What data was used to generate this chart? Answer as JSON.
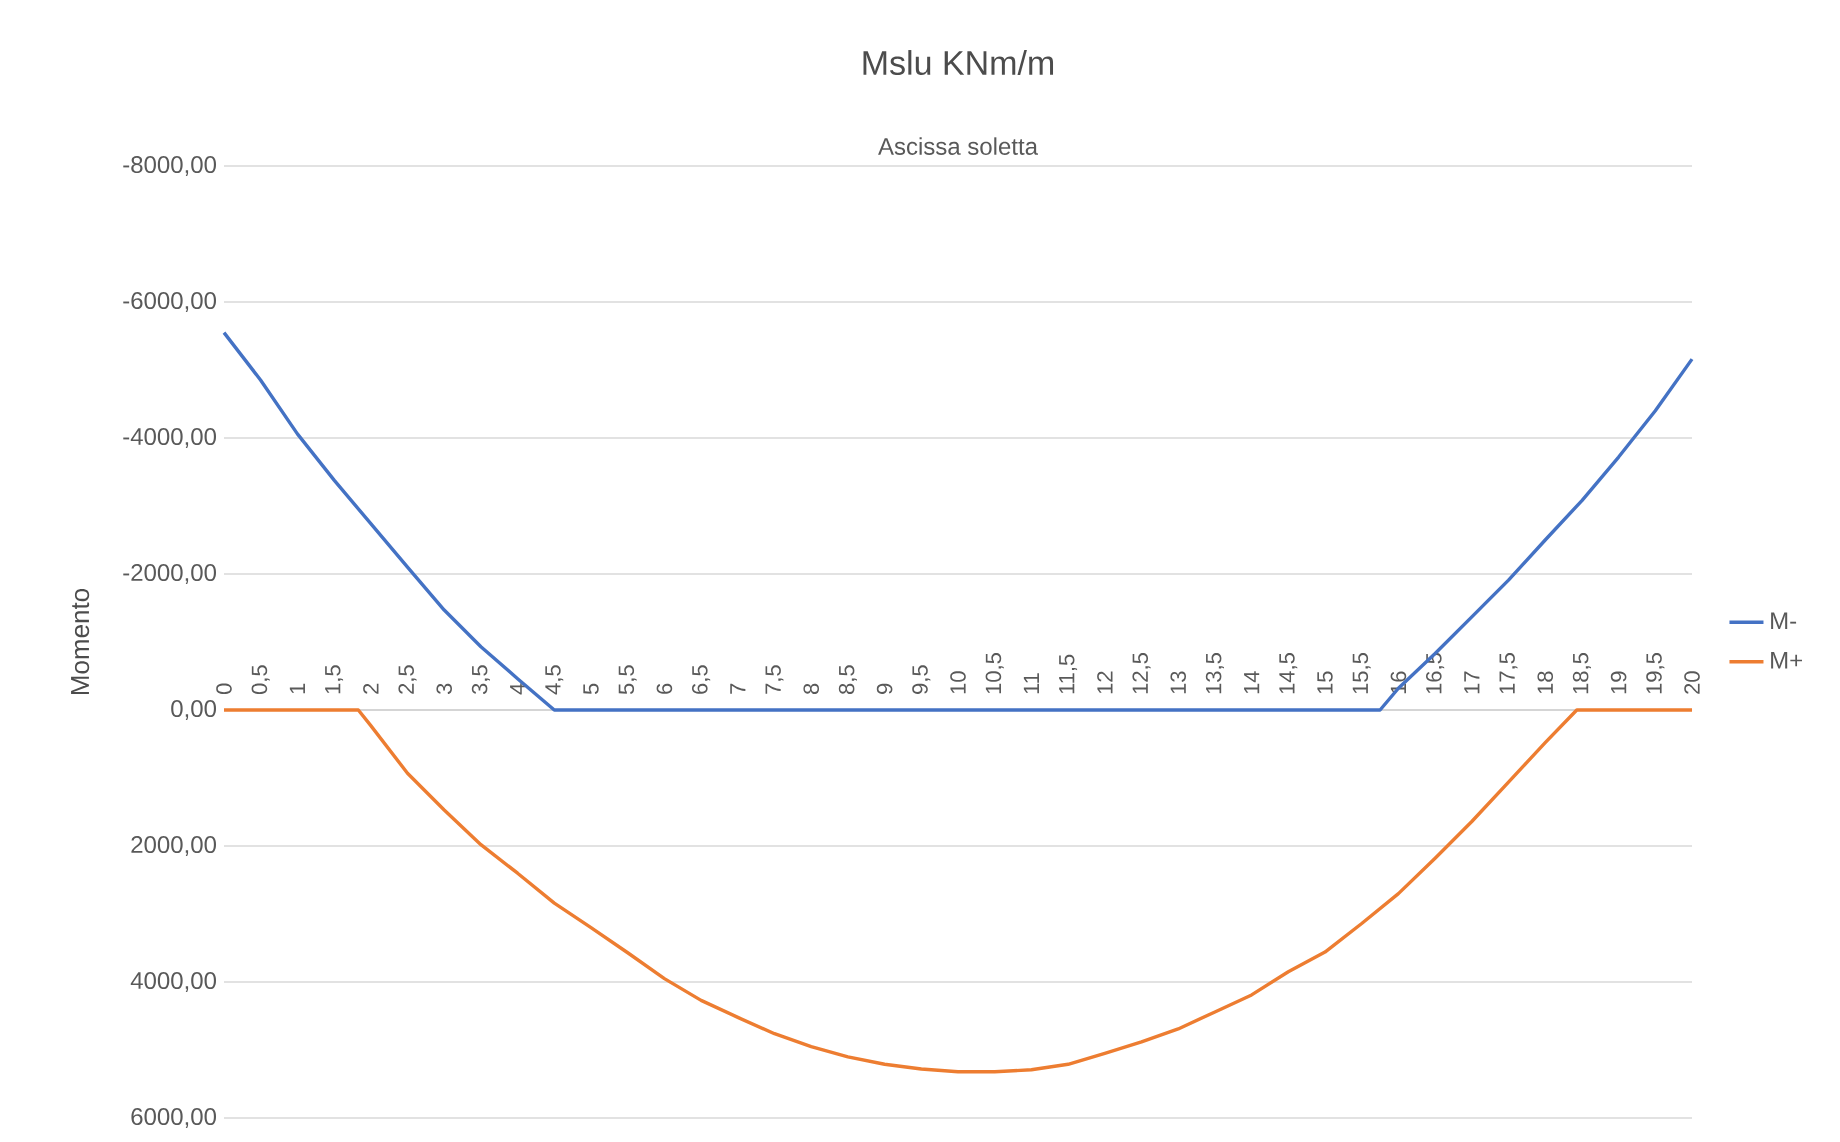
{
  "chart_data": {
    "type": "line",
    "title": "Mslu  KNm/m",
    "xlabel": "Ascissa soletta",
    "ylabel": "Momento",
    "xlim": [
      0,
      20
    ],
    "xticks": [
      0,
      {
        "value": 0.5,
        "label": "0,5"
      },
      1,
      {
        "value": 1.5,
        "label": "1,5"
      },
      2,
      {
        "value": 2.5,
        "label": "2,5"
      },
      3,
      {
        "value": 3.5,
        "label": "3,5"
      },
      4,
      {
        "value": 4.5,
        "label": "4,5"
      },
      5,
      {
        "value": 5.5,
        "label": "5,5"
      },
      6,
      {
        "value": 6.5,
        "label": "6,5"
      },
      7,
      {
        "value": 7.5,
        "label": "7,5"
      },
      8,
      {
        "value": 8.5,
        "label": "8,5"
      },
      9,
      {
        "value": 9.5,
        "label": "9,5"
      },
      10,
      {
        "value": 10.5,
        "label": "10,5"
      },
      11,
      {
        "value": 11.5,
        "label": "11,5"
      },
      12,
      {
        "value": 12.5,
        "label": "12,5"
      },
      13,
      {
        "value": 13.5,
        "label": "13,5"
      },
      14,
      {
        "value": 14.5,
        "label": "14,5"
      },
      15,
      {
        "value": 15.5,
        "label": "15,5"
      },
      16,
      {
        "value": 16.5,
        "label": "16,5"
      },
      17,
      {
        "value": 17.5,
        "label": "17,5"
      },
      18,
      {
        "value": 18.5,
        "label": "18,5"
      },
      19,
      {
        "value": 19.5,
        "label": "19,5"
      },
      20
    ],
    "ylim": [
      6000,
      -8000
    ],
    "yticks": [
      {
        "value": -8000,
        "label": "-8000,00"
      },
      {
        "value": -6000,
        "label": "-6000,00"
      },
      {
        "value": -4000,
        "label": "-4000,00"
      },
      {
        "value": -2000,
        "label": "-2000,00"
      },
      {
        "value": 0,
        "label": "0,00"
      },
      {
        "value": 2000,
        "label": "2000,00"
      },
      {
        "value": 4000,
        "label": "4000,00"
      },
      {
        "value": 6000,
        "label": "6000,00"
      }
    ],
    "grid": "y",
    "legend": "right",
    "marker": "none",
    "series": [
      {
        "name": "M-",
        "color": "#4472c4",
        "x": [
          0,
          0.5,
          1,
          1.5,
          2,
          2.5,
          3,
          3.5,
          4,
          4.5,
          15.75,
          16,
          16.5,
          17,
          17.5,
          18,
          18.5,
          19,
          19.5,
          20
        ],
        "values": [
          -5550,
          -4850,
          -4060,
          -3380,
          -2740,
          -2100,
          -1470,
          -930,
          -460,
          0,
          0,
          -320,
          -830,
          -1370,
          -1910,
          -2500,
          -3080,
          -3720,
          -4400,
          -5160
        ]
      },
      {
        "name": "M+",
        "color": "#ed7d31",
        "x": [
          0,
          1.5,
          1.83,
          2,
          2.5,
          3,
          3.5,
          4,
          4.5,
          5,
          5.5,
          6,
          6.5,
          7,
          7.5,
          8,
          8.5,
          9,
          9.5,
          10,
          10.5,
          11,
          11.5,
          12,
          12.5,
          13,
          13.5,
          14,
          14.5,
          15,
          15.5,
          16,
          16.5,
          17,
          17.5,
          18,
          18.43,
          18.5,
          19,
          19.5,
          20
        ],
        "values": [
          0,
          0,
          0,
          230,
          930,
          1470,
          1980,
          2400,
          2840,
          3200,
          3570,
          3950,
          4270,
          4520,
          4760,
          4950,
          5100,
          5210,
          5280,
          5320,
          5320,
          5290,
          5210,
          5050,
          4880,
          4690,
          4440,
          4190,
          3850,
          3560,
          3140,
          2700,
          2180,
          1640,
          1060,
          480,
          0,
          0,
          0,
          0,
          0
        ]
      }
    ]
  }
}
